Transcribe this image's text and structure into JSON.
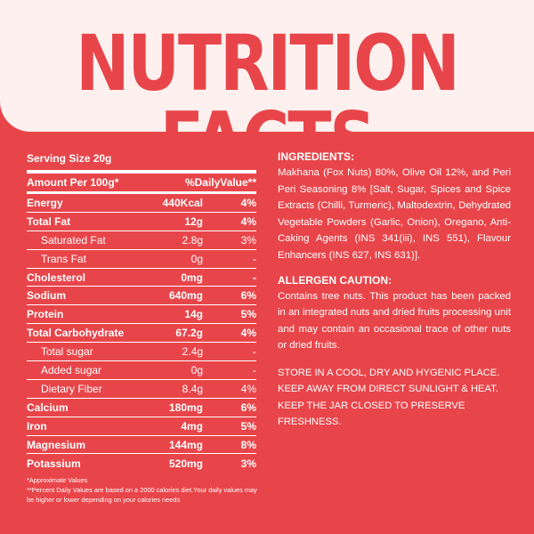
{
  "header": {
    "title": "NUTRITION FACTS"
  },
  "table": {
    "serving_size": "Serving Size 20g",
    "col_left": "Amount Per 100g*",
    "col_right": "%DailyValue**",
    "rows": [
      {
        "name": "Energy",
        "amount": "440Kcal",
        "dv": "4%",
        "style": "bold"
      },
      {
        "name": "Total Fat",
        "amount": "12g",
        "dv": "4%",
        "style": "bold"
      },
      {
        "name": "Saturated Fat",
        "amount": "2.8g",
        "dv": "3%",
        "style": "sub"
      },
      {
        "name": "Trans Fat",
        "amount": "0g",
        "dv": "-",
        "style": "sub"
      },
      {
        "name": "Cholesterol",
        "amount": "0mg",
        "dv": "-",
        "style": "bold"
      },
      {
        "name": "Sodium",
        "amount": "640mg",
        "dv": "6%",
        "style": "bold"
      },
      {
        "name": "Protein",
        "amount": "14g",
        "dv": "5%",
        "style": "bold"
      },
      {
        "name": "Total Carbohydrate",
        "amount": "67.2g",
        "dv": "4%",
        "style": "bold"
      },
      {
        "name": "Total sugar",
        "amount": "2.4g",
        "dv": "-",
        "style": "sub"
      },
      {
        "name": "Added sugar",
        "amount": "0g",
        "dv": "-",
        "style": "sub"
      },
      {
        "name": "Dietary Fiber",
        "amount": "8.4g",
        "dv": "4%",
        "style": "sub"
      },
      {
        "name": "Calcium",
        "amount": "180mg",
        "dv": "6%",
        "style": "bold"
      },
      {
        "name": "Iron",
        "amount": "4mg",
        "dv": "5%",
        "style": "bold"
      },
      {
        "name": "Magnesium",
        "amount": "144mg",
        "dv": "8%",
        "style": "bold"
      },
      {
        "name": "Potassium",
        "amount": "520mg",
        "dv": "3%",
        "style": "bold"
      }
    ]
  },
  "footnotes": {
    "line1": "*Approximate Values",
    "line2": "**Percent Daily Values are based on a 2000 calories diet.Your daily values may be higher or lower depending on your calories needs"
  },
  "ingredients": {
    "heading": "INGREDIENTS:",
    "text": "Makhana (Fox Nuts) 80%, Olive Oil 12%, and Peri Peri Seasoning 8% [Salt, Sugar, Spices and Spice Extracts (Chilli, Turmeric), Maltodextrin, Dehydrated Vegetable Powders (Garlic, Onion), Oregano, Anti-Caking Agents (INS 341(iii), INS 551), Flavour Enhancers (INS 627, INS 631)]."
  },
  "allergen": {
    "heading": "ALLERGEN CAUTION:",
    "text": "Contains tree nuts. This product has been packed in an integrated nuts and dried fruits processing unit and may contain an occasional trace of other nuts or dried fruits."
  },
  "storage": {
    "text": "STORE IN A COOL, DRY AND HYGENIC PLACE. KEEP AWAY FROM DIRECT SUNLIGHT & HEAT. KEEP THE JAR CLOSED TO PRESERVE FRESHNESS."
  },
  "colors": {
    "background": "#e8454a",
    "header_bg": "#fdf0ee",
    "text": "#ffffff"
  }
}
